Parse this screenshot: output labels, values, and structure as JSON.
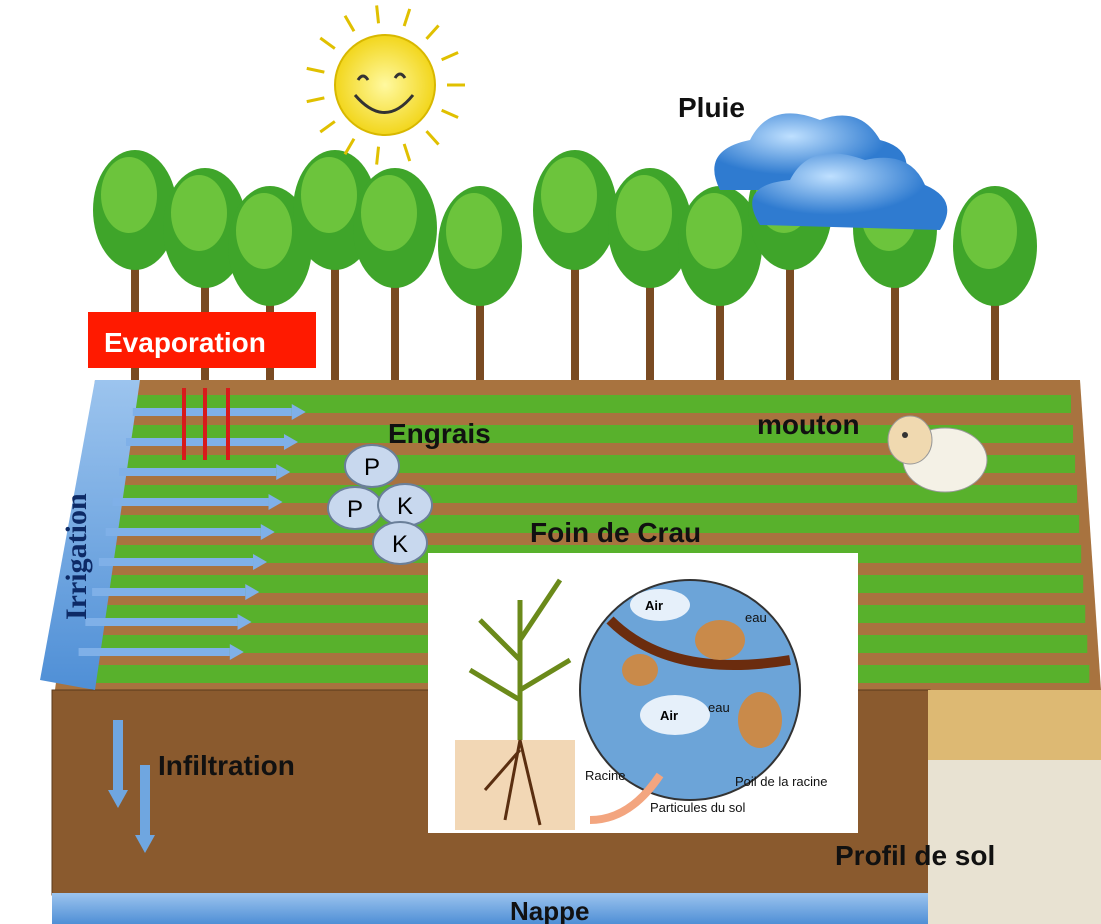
{
  "labels": {
    "rain": "Pluie",
    "evaporation": "Evaporation",
    "fertilizer": "Engrais",
    "nutrients": [
      "P",
      "P",
      "K",
      "K"
    ],
    "sheep": "mouton",
    "irrigation": "Irrigation",
    "crop": "Foin de Crau",
    "infiltration": "Infiltration",
    "soil_profile": "Profil de sol",
    "water_table": "Nappe"
  },
  "inset": {
    "air": [
      "Air",
      "Air"
    ],
    "water": [
      "eau",
      "eau"
    ],
    "root": "Racine",
    "root_hair": "Poil de la racine",
    "soil_particles": "Particules du sol"
  }
}
